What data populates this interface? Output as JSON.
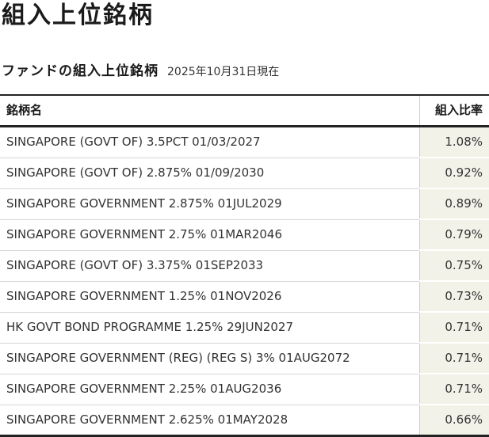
{
  "page": {
    "title": "組入上位銘柄",
    "section_heading": "ファンドの組入上位銘柄",
    "as_of_date": "2025年10月31日現在"
  },
  "table": {
    "headers": {
      "name": "銘柄名",
      "ratio": "組入比率"
    },
    "rows": [
      {
        "name": "SINGAPORE (GOVT OF) 3.5PCT 01/03/2027",
        "ratio": "1.08%"
      },
      {
        "name": "SINGAPORE (GOVT OF) 2.875% 01/09/2030",
        "ratio": "0.92%"
      },
      {
        "name": "SINGAPORE GOVERNMENT 2.875% 01JUL2029",
        "ratio": "0.89%"
      },
      {
        "name": "SINGAPORE GOVERNMENT 2.75% 01MAR2046",
        "ratio": "0.79%"
      },
      {
        "name": "SINGAPORE (GOVT OF) 3.375% 01SEP2033",
        "ratio": "0.75%"
      },
      {
        "name": "SINGAPORE GOVERNMENT 1.25% 01NOV2026",
        "ratio": "0.73%"
      },
      {
        "name": "HK GOVT BOND PROGRAMME 1.25% 29JUN2027",
        "ratio": "0.71%"
      },
      {
        "name": "SINGAPORE GOVERNMENT (REG) (REG S) 3% 01AUG2072",
        "ratio": "0.71%"
      },
      {
        "name": "SINGAPORE GOVERNMENT 2.25% 01AUG2036",
        "ratio": "0.71%"
      },
      {
        "name": "SINGAPORE GOVERNMENT 2.625% 01MAY2028",
        "ratio": "0.66%"
      }
    ]
  },
  "colors": {
    "ratio_cell_background": "#f3f2e8",
    "heavy_border": "#222222",
    "row_divider": "#d6d6d6",
    "column_divider": "#cccccc",
    "text": "#333333",
    "heading_text": "#1a1a1a"
  }
}
